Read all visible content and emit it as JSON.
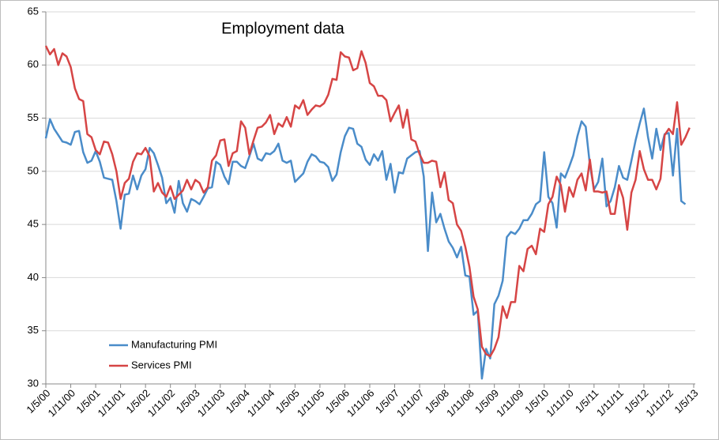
{
  "chart_data": {
    "type": "line",
    "title": "Employment data",
    "categories": [
      "1/5/00",
      null,
      null,
      null,
      null,
      null,
      "1/11/00",
      null,
      null,
      null,
      null,
      null,
      "1/5/01",
      null,
      null,
      null,
      null,
      null,
      "1/11/01",
      null,
      null,
      null,
      null,
      null,
      "1/5/02",
      null,
      null,
      null,
      null,
      null,
      "1/11/02",
      null,
      null,
      null,
      null,
      null,
      "1/5/03",
      null,
      null,
      null,
      null,
      null,
      "1/11/03",
      null,
      null,
      null,
      null,
      null,
      "1/5/04",
      null,
      null,
      null,
      null,
      null,
      "1/11/04",
      null,
      null,
      null,
      null,
      null,
      "1/5/05",
      null,
      null,
      null,
      null,
      null,
      "1/11/05",
      null,
      null,
      null,
      null,
      null,
      "1/5/06",
      null,
      null,
      null,
      null,
      null,
      "1/11/06",
      null,
      null,
      null,
      null,
      null,
      "1/5/07",
      null,
      null,
      null,
      null,
      null,
      "1/11/07",
      null,
      null,
      null,
      null,
      null,
      "1/5/08",
      null,
      null,
      null,
      null,
      null,
      "1/11/08",
      null,
      null,
      null,
      null,
      null,
      "1/5/09",
      null,
      null,
      null,
      null,
      null,
      "1/11/09",
      null,
      null,
      null,
      null,
      null,
      "1/5/10",
      null,
      null,
      null,
      null,
      null,
      "1/11/10",
      null,
      null,
      null,
      null,
      null,
      "1/5/11",
      null,
      null,
      null,
      null,
      null,
      "1/11/11",
      null,
      null,
      null,
      null,
      null,
      "1/5/12",
      null,
      null,
      null,
      null,
      null,
      "1/11/12",
      null,
      null,
      null,
      null,
      null,
      "1/5/13"
    ],
    "series": [
      {
        "name": "Manufacturing PMI",
        "color": "#4a8cc9",
        "values": [
          53.1,
          54.9,
          54.0,
          53.4,
          52.8,
          52.7,
          52.5,
          53.7,
          53.8,
          51.8,
          50.8,
          51.0,
          51.9,
          50.9,
          49.4,
          49.3,
          49.2,
          47.2,
          44.6,
          47.8,
          47.9,
          49.6,
          48.3,
          49.6,
          50.2,
          52.2,
          51.7,
          50.6,
          49.4,
          47.0,
          47.5,
          46.1,
          49.1,
          47.0,
          46.2,
          47.4,
          47.2,
          46.9,
          47.6,
          48.4,
          48.5,
          50.9,
          50.6,
          49.5,
          48.8,
          50.9,
          50.9,
          50.5,
          50.3,
          51.4,
          52.6,
          51.2,
          51.0,
          51.7,
          51.6,
          51.9,
          52.6,
          51.0,
          50.8,
          51.0,
          49.0,
          49.4,
          49.8,
          50.9,
          51.6,
          51.4,
          50.9,
          50.8,
          50.4,
          49.1,
          49.7,
          51.8,
          53.3,
          54.1,
          54.0,
          52.6,
          52.3,
          51.1,
          50.6,
          51.6,
          51.0,
          51.9,
          49.2,
          50.7,
          48.0,
          49.9,
          49.8,
          51.2,
          51.5,
          51.8,
          51.9,
          49.5,
          42.5,
          48.0,
          45.2,
          46.0,
          44.6,
          43.4,
          42.8,
          41.9,
          42.9,
          40.2,
          40.1,
          36.5,
          36.9,
          30.5,
          33.3,
          32.4,
          37.5,
          38.3,
          39.7,
          43.8,
          44.3,
          44.1,
          44.6,
          45.4,
          45.4,
          46.0,
          46.9,
          47.2,
          51.8,
          47.6,
          47.0,
          44.7,
          49.8,
          49.4,
          50.4,
          51.5,
          53.3,
          54.7,
          54.2,
          50.6,
          48.3,
          49.0,
          51.2,
          46.7,
          47.2,
          48.5,
          50.5,
          49.4,
          49.2,
          51.0,
          52.9,
          54.5,
          55.9,
          53.2,
          51.2,
          54.0,
          52.0,
          53.5,
          53.6,
          49.6,
          54.0,
          47.2,
          46.9,
          null,
          null
        ]
      },
      {
        "name": "Services PMI",
        "color": "#d64545",
        "values": [
          61.8,
          61.0,
          61.5,
          60.0,
          61.1,
          60.8,
          59.8,
          57.8,
          56.8,
          56.6,
          53.5,
          53.2,
          52.0,
          51.6,
          52.8,
          52.7,
          51.6,
          50.0,
          47.4,
          48.9,
          49.3,
          50.9,
          51.7,
          51.6,
          52.2,
          51.4,
          48.1,
          48.9,
          48.0,
          47.6,
          48.6,
          47.4,
          47.8,
          48.2,
          49.2,
          48.3,
          49.2,
          48.9,
          48.0,
          48.5,
          51.0,
          51.5,
          52.9,
          53.0,
          50.5,
          51.7,
          51.9,
          54.7,
          54.1,
          51.6,
          52.9,
          54.1,
          54.2,
          54.6,
          55.3,
          53.5,
          54.5,
          54.2,
          55.1,
          54.2,
          56.2,
          55.9,
          56.7,
          55.3,
          55.8,
          56.2,
          56.1,
          56.4,
          57.2,
          58.7,
          58.6,
          61.2,
          60.8,
          60.7,
          59.5,
          59.7,
          61.3,
          60.2,
          58.3,
          58.0,
          57.1,
          57.1,
          56.7,
          54.7,
          55.5,
          56.2,
          54.1,
          55.8,
          53.0,
          52.8,
          51.6,
          50.8,
          50.8,
          51.0,
          50.9,
          48.5,
          49.9,
          47.3,
          47.0,
          45.0,
          44.4,
          42.9,
          41.0,
          38.2,
          37.0,
          33.5,
          32.8,
          32.6,
          33.3,
          34.4,
          37.3,
          36.2,
          37.7,
          37.7,
          41.1,
          40.6,
          42.7,
          43.0,
          42.2,
          44.6,
          44.3,
          46.9,
          47.6,
          49.5,
          48.7,
          46.2,
          48.5,
          47.6,
          49.2,
          49.8,
          48.2,
          51.1,
          48.1,
          48.1,
          48.0,
          48.1,
          46.0,
          46.0,
          48.7,
          47.5,
          44.5,
          48.0,
          49.2,
          51.9,
          50.2,
          49.2,
          49.2,
          48.3,
          49.3,
          53.4,
          54.0,
          53.5,
          56.5,
          52.5,
          53.2,
          54.1,
          null
        ]
      }
    ],
    "ylim": [
      30,
      65
    ],
    "yticks": [
      30,
      35,
      40,
      45,
      50,
      55,
      60,
      65
    ],
    "grid": true,
    "legend": "lower left"
  }
}
